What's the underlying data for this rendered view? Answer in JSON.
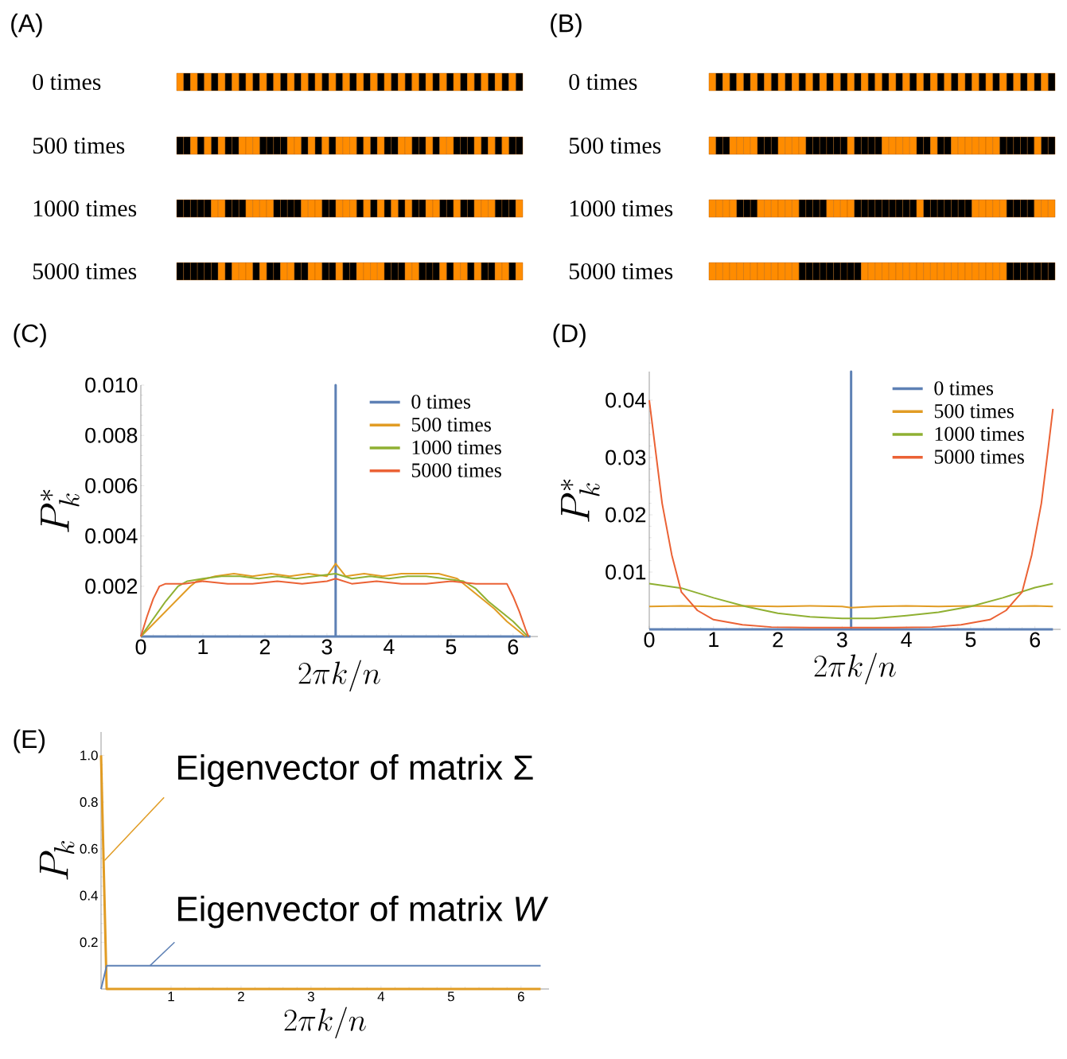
{
  "chart_data": [
    {
      "type": "other",
      "title": "(A)",
      "annotations": [
        "0 times",
        "500 times",
        "1000 times",
        "5000 times"
      ]
    },
    {
      "type": "other",
      "title": "(B)",
      "annotations": [
        "0 times",
        "500 times",
        "1000 times",
        "5000 times"
      ]
    },
    {
      "type": "line",
      "title": "(C)",
      "xlabel": "2\\pi k/n",
      "ylabel": "P_k^*",
      "xlim": [
        0,
        6.4
      ],
      "ylim": [
        0,
        0.01
      ],
      "xticks": [
        0,
        1,
        2,
        3,
        4,
        5,
        6
      ],
      "yticks": [
        0.002,
        0.004,
        0.006,
        0.008,
        {
          "value": 0.01,
          "label": "0.010"
        }
      ],
      "legend": "top right",
      "series": [
        {
          "name": "0 times",
          "color": "#5e81b5",
          "x": [
            0,
            3.14,
            3.14,
            3.14,
            6.28
          ],
          "values": [
            0,
            0,
            0.01,
            0,
            0
          ]
        },
        {
          "name": "500 times",
          "color": "#e19c24",
          "x": [
            0,
            0.2,
            0.4,
            0.6,
            0.8,
            0.9,
            1.2,
            1.5,
            1.8,
            2.1,
            2.4,
            2.7,
            3.0,
            3.14,
            3.3,
            3.6,
            3.9,
            4.2,
            4.5,
            4.8,
            5.1,
            5.3,
            5.5,
            5.7,
            5.9,
            6.1,
            6.2
          ],
          "values": [
            0,
            0.0005,
            0.001,
            0.0015,
            0.002,
            0.0022,
            0.0024,
            0.0025,
            0.0024,
            0.0025,
            0.0024,
            0.0025,
            0.0024,
            0.0029,
            0.0024,
            0.0025,
            0.0024,
            0.0025,
            0.0025,
            0.0025,
            0.0023,
            0.0019,
            0.0015,
            0.0011,
            0.0006,
            0.0002,
            0
          ]
        },
        {
          "name": "1000 times",
          "color": "#8fb032",
          "x": [
            0,
            0.2,
            0.4,
            0.6,
            0.75,
            1.0,
            1.3,
            1.6,
            1.9,
            2.2,
            2.5,
            2.8,
            3.14,
            3.4,
            3.7,
            4.0,
            4.3,
            4.6,
            4.9,
            5.2,
            5.4,
            5.6,
            5.8,
            6.0,
            6.2,
            6.25
          ],
          "values": [
            0,
            0.0007,
            0.0014,
            0.002,
            0.0022,
            0.0023,
            0.0024,
            0.0024,
            0.0023,
            0.0024,
            0.0023,
            0.0024,
            0.0025,
            0.0023,
            0.0024,
            0.0023,
            0.0024,
            0.0024,
            0.0023,
            0.0022,
            0.0019,
            0.0014,
            0.001,
            0.0006,
            0.0001,
            0
          ]
        },
        {
          "name": "5000 times",
          "color": "#eb6235",
          "x": [
            0,
            0.1,
            0.2,
            0.3,
            0.4,
            0.7,
            1.0,
            1.4,
            1.8,
            2.2,
            2.6,
            3.0,
            3.14,
            3.4,
            3.8,
            4.2,
            4.6,
            5.0,
            5.4,
            5.8,
            5.9,
            6.0,
            6.1,
            6.2,
            6.25
          ],
          "values": [
            0,
            0.0008,
            0.0015,
            0.002,
            0.0021,
            0.0021,
            0.0022,
            0.0021,
            0.0021,
            0.0022,
            0.0021,
            0.0022,
            0.0023,
            0.0021,
            0.0022,
            0.0021,
            0.0021,
            0.0022,
            0.0021,
            0.0021,
            0.0021,
            0.0016,
            0.001,
            0.0003,
            0
          ]
        }
      ]
    },
    {
      "type": "line",
      "title": "(D)",
      "xlabel": "2\\pi k/n",
      "ylabel": "P_k^*",
      "xlim": [
        0,
        6.4
      ],
      "ylim": [
        0,
        0.045
      ],
      "xticks": [
        0,
        1,
        2,
        3,
        4,
        5,
        6
      ],
      "yticks": [
        0.01,
        0.02,
        0.03,
        0.04
      ],
      "legend": "top right",
      "series": [
        {
          "name": "0 times",
          "color": "#5e81b5",
          "x": [
            0,
            3.14,
            3.14,
            3.14,
            6.28
          ],
          "values": [
            0,
            0,
            0.045,
            0,
            0
          ]
        },
        {
          "name": "500 times",
          "color": "#e19c24",
          "x": [
            0,
            0.5,
            1.0,
            1.5,
            2.0,
            2.5,
            3.0,
            3.14,
            3.5,
            4.0,
            4.5,
            5.0,
            5.5,
            6.0,
            6.28
          ],
          "values": [
            0.004,
            0.0041,
            0.004,
            0.0041,
            0.004,
            0.0041,
            0.004,
            0.0038,
            0.004,
            0.0041,
            0.004,
            0.0041,
            0.004,
            0.0041,
            0.004
          ]
        },
        {
          "name": "1000 times",
          "color": "#8fb032",
          "x": [
            0,
            0.5,
            1.0,
            1.5,
            2.0,
            2.5,
            3.0,
            3.5,
            4.0,
            4.5,
            5.0,
            5.5,
            6.0,
            6.28
          ],
          "values": [
            0.008,
            0.0072,
            0.0055,
            0.004,
            0.0028,
            0.0022,
            0.0019,
            0.0019,
            0.0024,
            0.003,
            0.004,
            0.0055,
            0.0073,
            0.008
          ]
        },
        {
          "name": "5000 times",
          "color": "#eb6235",
          "x": [
            0,
            0.1,
            0.2,
            0.35,
            0.5,
            0.75,
            1.0,
            1.45,
            1.9,
            2.5,
            3.14,
            3.8,
            4.4,
            4.85,
            5.3,
            5.55,
            5.8,
            5.95,
            6.1,
            6.2,
            6.28
          ],
          "values": [
            0.04,
            0.031,
            0.022,
            0.013,
            0.0065,
            0.0033,
            0.0017,
            0.0008,
            0.0004,
            0.0003,
            0.0003,
            0.0003,
            0.0004,
            0.0008,
            0.0017,
            0.0033,
            0.0065,
            0.013,
            0.022,
            0.031,
            0.0385
          ]
        }
      ]
    },
    {
      "type": "line",
      "title": "(E)",
      "xlabel": "2\\pi k/n",
      "ylabel": "P_k",
      "xlim": [
        0,
        6.4
      ],
      "ylim": [
        0,
        1.1
      ],
      "xticks": [
        1,
        2,
        3,
        4,
        5,
        6
      ],
      "yticks": [
        0.2,
        0.4,
        0.6,
        0.8,
        {
          "value": 1,
          "label": "1.0"
        }
      ],
      "annotations": [
        {
          "text": "Eigenvector of matrix Σ",
          "x": 0.05,
          "y": 0.55
        },
        {
          "text": "Eigenvector of matrix *W*",
          "x": 0.7,
          "y": 0.1
        }
      ],
      "series": [
        {
          "color": "#e19c24",
          "x": [
            0,
            0.08,
            6.28
          ],
          "values": [
            1,
            0,
            0
          ]
        },
        {
          "color": "#5e81b5",
          "x": [
            0,
            0.08,
            6.28
          ],
          "values": [
            0,
            0.1,
            0.1
          ]
        }
      ]
    }
  ]
}
